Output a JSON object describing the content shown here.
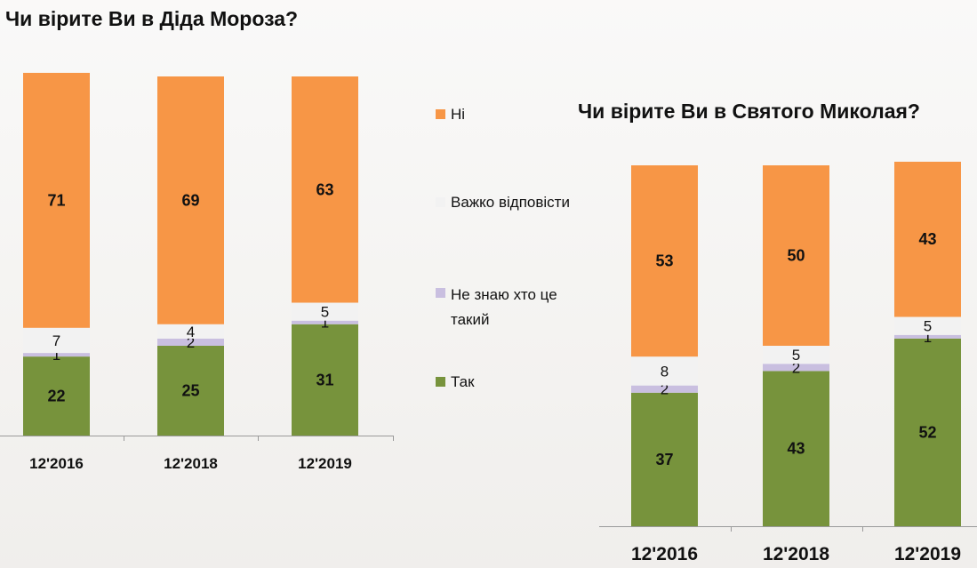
{
  "colors": {
    "ni": "#f79646",
    "vazhko": "#f2f2f2",
    "ne_znayu": "#c9bfe0",
    "tak": "#77933c"
  },
  "legend": {
    "items": [
      {
        "key": "ni",
        "label": "Ні"
      },
      {
        "key": "vazhko",
        "label": "Важко відповісти"
      },
      {
        "key": "ne_znayu",
        "label": "Не знаю хто це такий"
      },
      {
        "key": "tak",
        "label": "Так"
      }
    ]
  },
  "chart_data": [
    {
      "type": "bar",
      "stacked": true,
      "title": "Чи вірите Ви в Діда Мороза?",
      "categories": [
        "12'2016",
        "12'2018",
        "12'2019"
      ],
      "series": [
        {
          "name": "Так",
          "key": "tak",
          "values": [
            22,
            25,
            31
          ]
        },
        {
          "name": "Не знаю хто це такий",
          "key": "ne_znayu",
          "values": [
            1,
            2,
            1
          ]
        },
        {
          "name": "Важко відповісти",
          "key": "vazhko",
          "values": [
            7,
            4,
            5
          ]
        },
        {
          "name": "Ні",
          "key": "ni",
          "values": [
            71,
            69,
            63
          ]
        }
      ],
      "ylim": [
        0,
        100
      ]
    },
    {
      "type": "bar",
      "stacked": true,
      "title": "Чи вірите Ви в Святого Миколая?",
      "categories": [
        "12'2016",
        "12'2018",
        "12'2019"
      ],
      "series": [
        {
          "name": "Так",
          "key": "tak",
          "values": [
            37,
            43,
            52
          ]
        },
        {
          "name": "Не знаю хто це такий",
          "key": "ne_znayu",
          "values": [
            2,
            2,
            1
          ]
        },
        {
          "name": "Важко відповісти",
          "key": "vazhko",
          "values": [
            8,
            5,
            5
          ]
        },
        {
          "name": "Ні",
          "key": "ni",
          "values": [
            53,
            50,
            43
          ]
        }
      ],
      "ylim": [
        0,
        100
      ]
    }
  ]
}
